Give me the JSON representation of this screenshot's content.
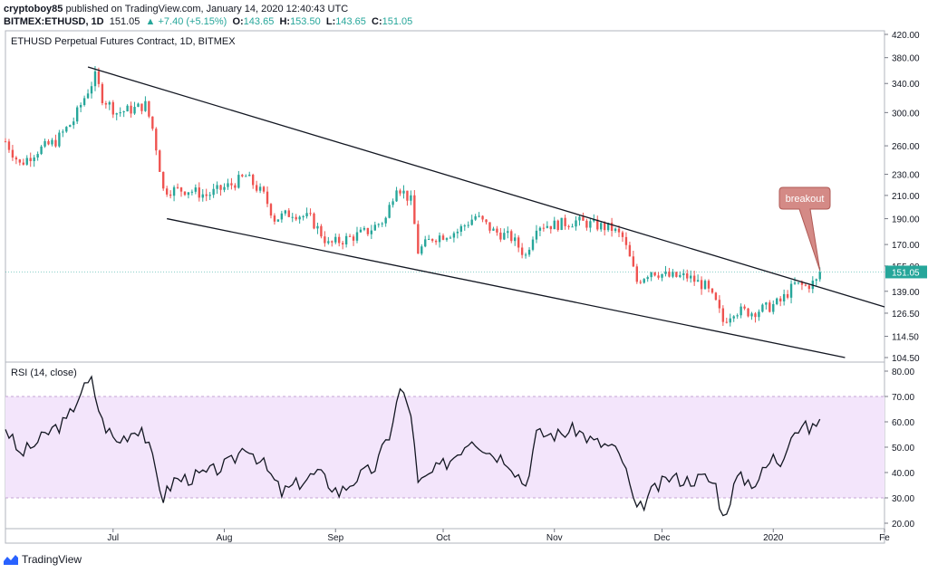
{
  "header": {
    "author": "cryptoboy85",
    "published": "published on TradingView.com, January 14, 2020 12:40:43 UTC",
    "symbol": "BITMEX:ETHUSD, 1D",
    "last": "151.05",
    "change": "▲ +7.40 (+5.15%)",
    "o_label": "O:",
    "o": "143.65",
    "h_label": "H:",
    "h": "153.50",
    "l_label": "L:",
    "l": "143.65",
    "c_label": "C:",
    "c": "151.05"
  },
  "footer": {
    "brand": "TradingView"
  },
  "colors": {
    "up": "#26a69a",
    "down": "#ef5350",
    "rsi_band": "#f3e5fb",
    "price_line": "#26a69a"
  },
  "chart_data": [
    {
      "type": "candlestick",
      "title": "ETHUSD Perpetual Futures Contract, 1D, BITMEX",
      "x_tick_labels": [
        "Jul",
        "Aug",
        "Sep",
        "Oct",
        "Nov",
        "Dec",
        "2020",
        "Fe"
      ],
      "x_range": [
        "2019-06-01",
        "2020-02-01"
      ],
      "y_scale": "log",
      "y_tick_labels": [
        "420.00",
        "380.00",
        "340.00",
        "300.00",
        "260.00",
        "230.00",
        "210.00",
        "190.00",
        "170.00",
        "155.00",
        "139.00",
        "126.50",
        "114.50",
        "104.50"
      ],
      "last_price_label": "151.05",
      "annotation": "breakout",
      "close_path": [
        [
          "2019-06-01",
          265
        ],
        [
          "2019-06-05",
          240
        ],
        [
          "2019-06-10",
          255
        ],
        [
          "2019-06-15",
          265
        ],
        [
          "2019-06-20",
          290
        ],
        [
          "2019-06-23",
          320
        ],
        [
          "2019-06-26",
          350
        ],
        [
          "2019-06-28",
          320
        ],
        [
          "2019-07-02",
          300
        ],
        [
          "2019-07-07",
          305
        ],
        [
          "2019-07-10",
          310
        ],
        [
          "2019-07-12",
          280
        ],
        [
          "2019-07-15",
          215
        ],
        [
          "2019-07-18",
          215
        ],
        [
          "2019-07-22",
          215
        ],
        [
          "2019-07-27",
          210
        ],
        [
          "2019-08-03",
          220
        ],
        [
          "2019-08-07",
          228
        ],
        [
          "2019-08-12",
          210
        ],
        [
          "2019-08-15",
          190
        ],
        [
          "2019-08-20",
          195
        ],
        [
          "2019-08-25",
          190
        ],
        [
          "2019-08-30",
          170
        ],
        [
          "2019-09-05",
          175
        ],
        [
          "2019-09-10",
          180
        ],
        [
          "2019-09-15",
          190
        ],
        [
          "2019-09-18",
          220
        ],
        [
          "2019-09-22",
          205
        ],
        [
          "2019-09-24",
          165
        ],
        [
          "2019-09-28",
          175
        ],
        [
          "2019-10-05",
          180
        ],
        [
          "2019-10-10",
          192
        ],
        [
          "2019-10-15",
          180
        ],
        [
          "2019-10-20",
          175
        ],
        [
          "2019-10-24",
          162
        ],
        [
          "2019-10-27",
          185
        ],
        [
          "2019-11-01",
          185
        ],
        [
          "2019-11-07",
          188
        ],
        [
          "2019-11-12",
          185
        ],
        [
          "2019-11-17",
          182
        ],
        [
          "2019-11-20",
          175
        ],
        [
          "2019-11-24",
          145
        ],
        [
          "2019-11-28",
          152
        ],
        [
          "2019-12-03",
          148
        ],
        [
          "2019-12-08",
          148
        ],
        [
          "2019-12-13",
          142
        ],
        [
          "2019-12-16",
          132
        ],
        [
          "2019-12-18",
          122
        ],
        [
          "2019-12-21",
          128
        ],
        [
          "2019-12-26",
          127
        ],
        [
          "2019-12-31",
          130
        ],
        [
          "2020-01-03",
          133
        ],
        [
          "2020-01-07",
          143
        ],
        [
          "2020-01-10",
          142
        ],
        [
          "2020-01-13",
          145
        ],
        [
          "2020-01-14",
          151
        ]
      ],
      "trendlines": [
        {
          "name": "upper",
          "from": [
            "2019-06-24",
            365
          ],
          "to": [
            "2020-02-01",
            130
          ]
        },
        {
          "name": "lower",
          "from": [
            "2019-07-16",
            190
          ],
          "to": [
            "2020-01-21",
            104.5
          ]
        }
      ]
    },
    {
      "type": "line",
      "title": "RSI (14, close)",
      "y_tick_labels": [
        "80.00",
        "70.00",
        "60.00",
        "50.00",
        "40.00",
        "30.00",
        "20.00"
      ],
      "y_range": [
        20,
        80
      ],
      "band": [
        30,
        70
      ],
      "series": [
        {
          "values": [
            [
              "2019-06-01",
              58
            ],
            [
              "2019-06-05",
              47
            ],
            [
              "2019-06-10",
              52
            ],
            [
              "2019-06-14",
              57
            ],
            [
              "2019-06-18",
              60
            ],
            [
              "2019-06-22",
              72
            ],
            [
              "2019-06-25",
              76
            ],
            [
              "2019-06-28",
              60
            ],
            [
              "2019-07-02",
              52
            ],
            [
              "2019-07-06",
              56
            ],
            [
              "2019-07-09",
              58
            ],
            [
              "2019-07-12",
              45
            ],
            [
              "2019-07-15",
              30
            ],
            [
              "2019-07-18",
              37
            ],
            [
              "2019-07-23",
              38
            ],
            [
              "2019-07-28",
              40
            ],
            [
              "2019-08-03",
              44
            ],
            [
              "2019-08-07",
              51
            ],
            [
              "2019-08-12",
              43
            ],
            [
              "2019-08-17",
              32
            ],
            [
              "2019-08-22",
              36
            ],
            [
              "2019-08-27",
              40
            ],
            [
              "2019-09-02",
              32
            ],
            [
              "2019-09-07",
              38
            ],
            [
              "2019-09-12",
              42
            ],
            [
              "2019-09-16",
              55
            ],
            [
              "2019-09-19",
              73
            ],
            [
              "2019-09-22",
              64
            ],
            [
              "2019-09-24",
              35
            ],
            [
              "2019-09-28",
              40
            ],
            [
              "2019-10-03",
              45
            ],
            [
              "2019-10-09",
              54
            ],
            [
              "2019-10-14",
              48
            ],
            [
              "2019-10-19",
              45
            ],
            [
              "2019-10-24",
              35
            ],
            [
              "2019-10-27",
              55
            ],
            [
              "2019-11-02",
              55
            ],
            [
              "2019-11-07",
              57
            ],
            [
              "2019-11-12",
              52
            ],
            [
              "2019-11-17",
              50
            ],
            [
              "2019-11-20",
              45
            ],
            [
              "2019-11-24",
              24
            ],
            [
              "2019-11-28",
              32
            ],
            [
              "2019-12-03",
              38
            ],
            [
              "2019-12-08",
              37
            ],
            [
              "2019-12-13",
              38
            ],
            [
              "2019-12-16",
              35
            ],
            [
              "2019-12-18",
              22
            ],
            [
              "2019-12-22",
              38
            ],
            [
              "2019-12-27",
              36
            ],
            [
              "2020-01-01",
              46
            ],
            [
              "2020-01-03",
              44
            ],
            [
              "2020-01-06",
              56
            ],
            [
              "2020-01-09",
              58
            ],
            [
              "2020-01-12",
              57
            ],
            [
              "2020-01-14",
              62
            ]
          ]
        }
      ]
    }
  ]
}
